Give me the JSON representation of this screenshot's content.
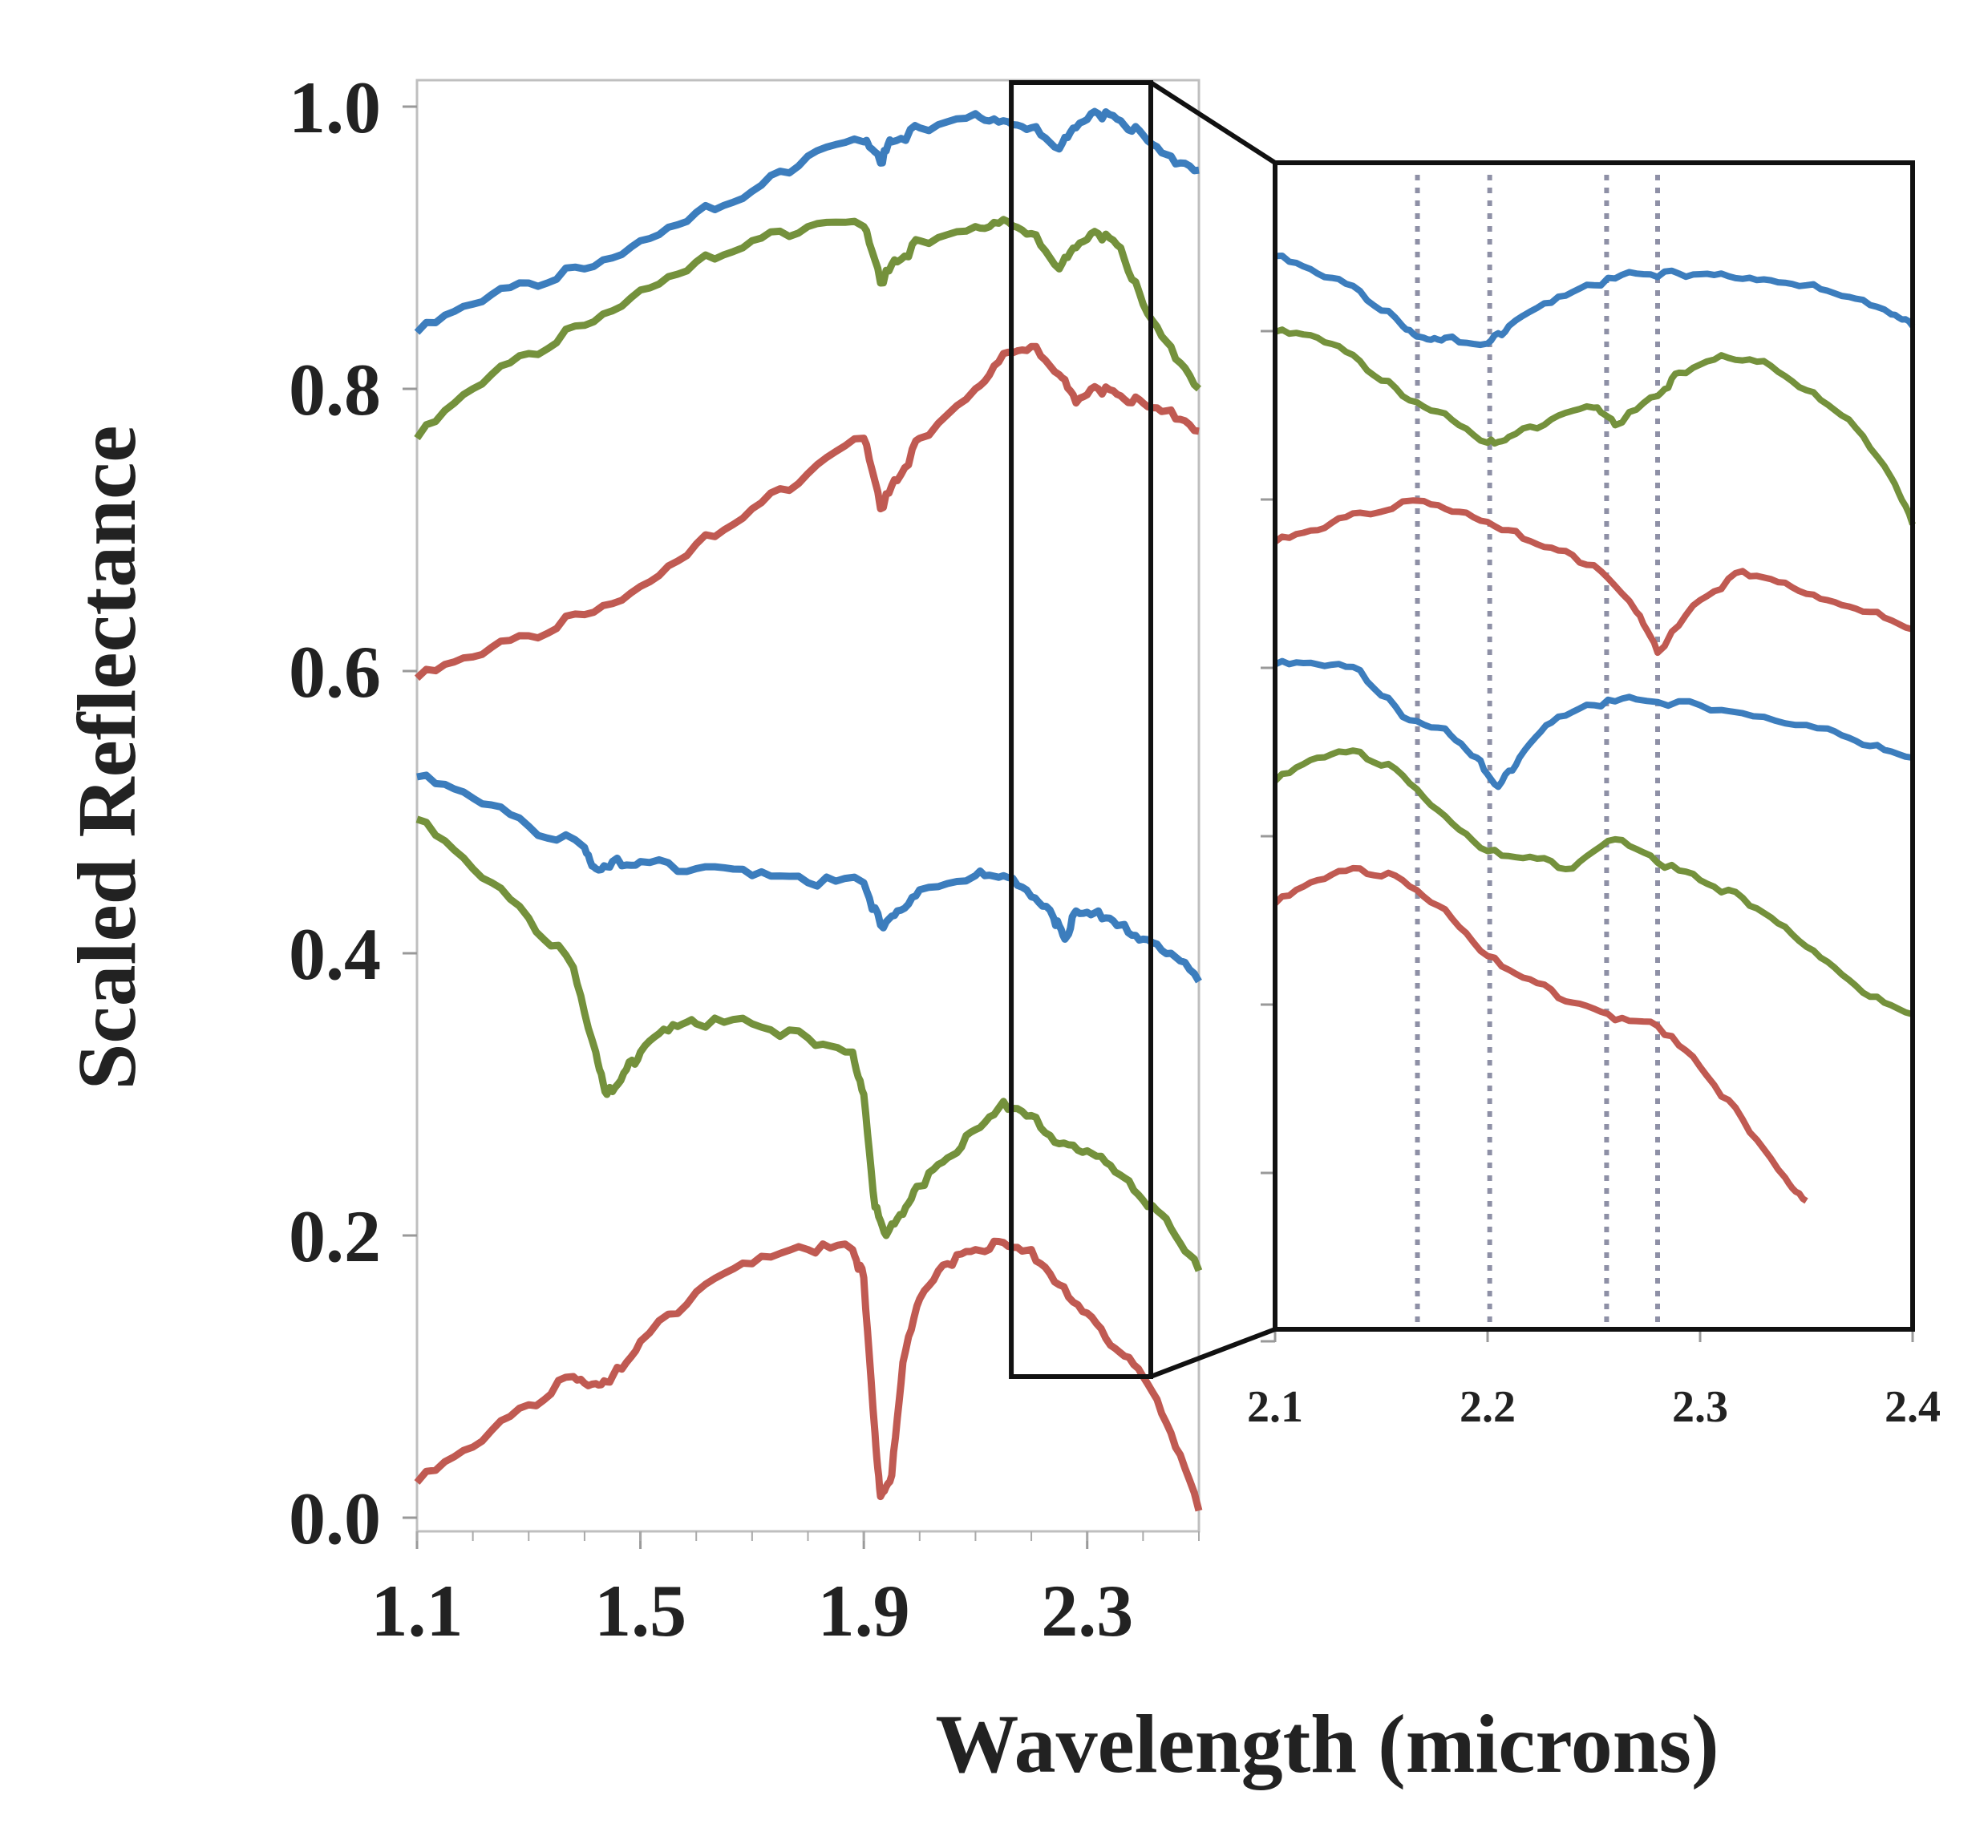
{
  "colors": {
    "blue": "#3c7dbd",
    "green": "#74913c",
    "red": "#c05a52",
    "frame": "#111111",
    "axis": "#bfbfbf",
    "marker": "#8e90a6"
  },
  "chart_data": [
    {
      "type": "line",
      "title": "",
      "xlabel": "Wavelength (microns)",
      "ylabel": "Scaled Reflectance",
      "xlim": [
        1.1,
        2.5
      ],
      "ylim": [
        0.0,
        1.0
      ],
      "x_ticks": [
        1.1,
        1.5,
        1.9,
        2.3
      ],
      "x_tick_labels": [
        "1.1",
        "1.5",
        "1.9",
        "2.3"
      ],
      "y_ticks": [
        0.0,
        0.2,
        0.4,
        0.6,
        0.8,
        1.0
      ],
      "y_tick_labels": [
        "0.0",
        "0.2",
        "0.4",
        "0.6",
        "0.8",
        "1.0"
      ],
      "grid": false,
      "legend": "none",
      "zoom_region": {
        "x": [
          2.2,
          2.5
        ],
        "y": [
          0.1,
          1.0
        ]
      },
      "series": [
        {
          "color": "blue",
          "points": [
            [
              1.1,
              0.84
            ],
            [
              1.2,
              0.86
            ],
            [
              1.3,
              0.875
            ],
            [
              1.4,
              0.885
            ],
            [
              1.5,
              0.905
            ],
            [
              1.6,
              0.925
            ],
            [
              1.7,
              0.94
            ],
            [
              1.8,
              0.965
            ],
            [
              1.9,
              0.975
            ],
            [
              1.93,
              0.96
            ],
            [
              1.95,
              0.975
            ],
            [
              2.0,
              0.985
            ],
            [
              2.1,
              0.995
            ],
            [
              2.15,
              0.99
            ],
            [
              2.2,
              0.985
            ],
            [
              2.25,
              0.97
            ],
            [
              2.28,
              0.985
            ],
            [
              2.32,
              0.995
            ],
            [
              2.36,
              0.99
            ],
            [
              2.4,
              0.98
            ],
            [
              2.45,
              0.965
            ],
            [
              2.5,
              0.955
            ]
          ]
        },
        {
          "color": "green",
          "points": [
            [
              1.1,
              0.765
            ],
            [
              1.2,
              0.8
            ],
            [
              1.3,
              0.825
            ],
            [
              1.4,
              0.845
            ],
            [
              1.5,
              0.87
            ],
            [
              1.6,
              0.89
            ],
            [
              1.7,
              0.905
            ],
            [
              1.8,
              0.915
            ],
            [
              1.9,
              0.915
            ],
            [
              1.93,
              0.875
            ],
            [
              1.96,
              0.89
            ],
            [
              2.0,
              0.905
            ],
            [
              2.1,
              0.915
            ],
            [
              2.15,
              0.92
            ],
            [
              2.2,
              0.91
            ],
            [
              2.25,
              0.885
            ],
            [
              2.28,
              0.9
            ],
            [
              2.32,
              0.91
            ],
            [
              2.36,
              0.9
            ],
            [
              2.4,
              0.86
            ],
            [
              2.45,
              0.83
            ],
            [
              2.5,
              0.8
            ]
          ]
        },
        {
          "color": "red",
          "points": [
            [
              1.1,
              0.595
            ],
            [
              1.2,
              0.61
            ],
            [
              1.3,
              0.625
            ],
            [
              1.4,
              0.64
            ],
            [
              1.5,
              0.66
            ],
            [
              1.6,
              0.69
            ],
            [
              1.7,
              0.715
            ],
            [
              1.8,
              0.74
            ],
            [
              1.9,
              0.765
            ],
            [
              1.93,
              0.715
            ],
            [
              1.96,
              0.735
            ],
            [
              2.0,
              0.765
            ],
            [
              2.1,
              0.8
            ],
            [
              2.15,
              0.825
            ],
            [
              2.2,
              0.83
            ],
            [
              2.25,
              0.81
            ],
            [
              2.28,
              0.79
            ],
            [
              2.32,
              0.8
            ],
            [
              2.36,
              0.795
            ],
            [
              2.4,
              0.79
            ],
            [
              2.45,
              0.785
            ],
            [
              2.5,
              0.77
            ]
          ]
        },
        {
          "color": "blue",
          "points": [
            [
              1.1,
              0.525
            ],
            [
              1.2,
              0.51
            ],
            [
              1.3,
              0.49
            ],
            [
              1.4,
              0.475
            ],
            [
              1.42,
              0.46
            ],
            [
              1.45,
              0.465
            ],
            [
              1.5,
              0.465
            ],
            [
              1.6,
              0.46
            ],
            [
              1.7,
              0.455
            ],
            [
              1.8,
              0.45
            ],
            [
              1.9,
              0.45
            ],
            [
              1.93,
              0.42
            ],
            [
              1.96,
              0.43
            ],
            [
              2.0,
              0.445
            ],
            [
              2.1,
              0.455
            ],
            [
              2.15,
              0.455
            ],
            [
              2.2,
              0.44
            ],
            [
              2.24,
              0.425
            ],
            [
              2.26,
              0.41
            ],
            [
              2.28,
              0.43
            ],
            [
              2.32,
              0.43
            ],
            [
              2.36,
              0.42
            ],
            [
              2.4,
              0.41
            ],
            [
              2.45,
              0.4
            ],
            [
              2.5,
              0.38
            ]
          ]
        },
        {
          "color": "green",
          "points": [
            [
              1.1,
              0.495
            ],
            [
              1.2,
              0.46
            ],
            [
              1.3,
              0.425
            ],
            [
              1.38,
              0.39
            ],
            [
              1.42,
              0.33
            ],
            [
              1.44,
              0.3
            ],
            [
              1.47,
              0.315
            ],
            [
              1.5,
              0.33
            ],
            [
              1.55,
              0.345
            ],
            [
              1.6,
              0.35
            ],
            [
              1.7,
              0.35
            ],
            [
              1.8,
              0.34
            ],
            [
              1.88,
              0.33
            ],
            [
              1.9,
              0.3
            ],
            [
              1.92,
              0.22
            ],
            [
              1.94,
              0.2
            ],
            [
              1.97,
              0.215
            ],
            [
              2.0,
              0.235
            ],
            [
              2.05,
              0.255
            ],
            [
              2.1,
              0.275
            ],
            [
              2.15,
              0.295
            ],
            [
              2.2,
              0.285
            ],
            [
              2.25,
              0.265
            ],
            [
              2.3,
              0.26
            ],
            [
              2.35,
              0.245
            ],
            [
              2.4,
              0.225
            ],
            [
              2.45,
              0.205
            ],
            [
              2.5,
              0.175
            ]
          ]
        },
        {
          "color": "red",
          "points": [
            [
              1.1,
              0.025
            ],
            [
              1.2,
              0.05
            ],
            [
              1.3,
              0.08
            ],
            [
              1.38,
              0.1
            ],
            [
              1.42,
              0.095
            ],
            [
              1.45,
              0.1
            ],
            [
              1.5,
              0.125
            ],
            [
              1.6,
              0.16
            ],
            [
              1.7,
              0.18
            ],
            [
              1.8,
              0.19
            ],
            [
              1.88,
              0.19
            ],
            [
              1.9,
              0.17
            ],
            [
              1.92,
              0.06
            ],
            [
              1.93,
              0.015
            ],
            [
              1.95,
              0.03
            ],
            [
              1.97,
              0.11
            ],
            [
              2.0,
              0.155
            ],
            [
              2.05,
              0.18
            ],
            [
              2.1,
              0.19
            ],
            [
              2.15,
              0.195
            ],
            [
              2.2,
              0.19
            ],
            [
              2.25,
              0.165
            ],
            [
              2.3,
              0.145
            ],
            [
              2.35,
              0.12
            ],
            [
              2.4,
              0.1
            ],
            [
              2.45,
              0.06
            ],
            [
              2.5,
              0.005
            ]
          ]
        }
      ]
    },
    {
      "type": "line",
      "title": "",
      "xlim": [
        2.1,
        2.4
      ],
      "ylim": [
        0.0,
        1.0
      ],
      "x_ticks": [
        2.1,
        2.2,
        2.3,
        2.4
      ],
      "x_tick_labels": [
        "2.1",
        "2.2",
        "2.3",
        "2.4"
      ],
      "y_tick_marks": 7,
      "y_tick_labels": [],
      "grid": false,
      "legend": "none",
      "reference_lines_x": [
        2.167,
        2.201,
        2.256,
        2.28
      ],
      "series": [
        {
          "color": "blue",
          "points": [
            [
              2.1,
              0.92
            ],
            [
              2.12,
              0.905
            ],
            [
              2.14,
              0.89
            ],
            [
              2.16,
              0.86
            ],
            [
              2.17,
              0.85
            ],
            [
              2.18,
              0.85
            ],
            [
              2.2,
              0.845
            ],
            [
              2.21,
              0.86
            ],
            [
              2.23,
              0.88
            ],
            [
              2.25,
              0.895
            ],
            [
              2.27,
              0.905
            ],
            [
              2.29,
              0.905
            ],
            [
              2.31,
              0.905
            ],
            [
              2.33,
              0.9
            ],
            [
              2.35,
              0.895
            ],
            [
              2.37,
              0.885
            ],
            [
              2.39,
              0.87
            ],
            [
              2.4,
              0.86
            ]
          ]
        },
        {
          "color": "green",
          "points": [
            [
              2.1,
              0.855
            ],
            [
              2.12,
              0.85
            ],
            [
              2.14,
              0.83
            ],
            [
              2.16,
              0.8
            ],
            [
              2.18,
              0.785
            ],
            [
              2.2,
              0.76
            ],
            [
              2.21,
              0.765
            ],
            [
              2.23,
              0.78
            ],
            [
              2.25,
              0.79
            ],
            [
              2.26,
              0.775
            ],
            [
              2.28,
              0.8
            ],
            [
              2.29,
              0.82
            ],
            [
              2.31,
              0.835
            ],
            [
              2.33,
              0.83
            ],
            [
              2.35,
              0.805
            ],
            [
              2.37,
              0.78
            ],
            [
              2.39,
              0.73
            ],
            [
              2.4,
              0.69
            ]
          ]
        },
        {
          "color": "red",
          "points": [
            [
              2.1,
              0.675
            ],
            [
              2.12,
              0.685
            ],
            [
              2.14,
              0.7
            ],
            [
              2.17,
              0.71
            ],
            [
              2.19,
              0.7
            ],
            [
              2.21,
              0.685
            ],
            [
              2.23,
              0.67
            ],
            [
              2.25,
              0.655
            ],
            [
              2.27,
              0.615
            ],
            [
              2.28,
              0.58
            ],
            [
              2.3,
              0.625
            ],
            [
              2.32,
              0.65
            ],
            [
              2.34,
              0.64
            ],
            [
              2.36,
              0.625
            ],
            [
              2.38,
              0.615
            ],
            [
              2.4,
              0.6
            ]
          ]
        },
        {
          "color": "blue",
          "points": [
            [
              2.1,
              0.57
            ],
            [
              2.12,
              0.57
            ],
            [
              2.14,
              0.565
            ],
            [
              2.16,
              0.525
            ],
            [
              2.18,
              0.515
            ],
            [
              2.195,
              0.49
            ],
            [
              2.205,
              0.465
            ],
            [
              2.215,
              0.49
            ],
            [
              2.23,
              0.52
            ],
            [
              2.25,
              0.535
            ],
            [
              2.27,
              0.54
            ],
            [
              2.3,
              0.535
            ],
            [
              2.33,
              0.525
            ],
            [
              2.36,
              0.515
            ],
            [
              2.38,
              0.5
            ],
            [
              2.4,
              0.49
            ]
          ]
        },
        {
          "color": "green",
          "points": [
            [
              2.1,
              0.47
            ],
            [
              2.12,
              0.49
            ],
            [
              2.14,
              0.495
            ],
            [
              2.16,
              0.475
            ],
            [
              2.18,
              0.44
            ],
            [
              2.2,
              0.41
            ],
            [
              2.22,
              0.405
            ],
            [
              2.24,
              0.395
            ],
            [
              2.26,
              0.42
            ],
            [
              2.28,
              0.4
            ],
            [
              2.3,
              0.385
            ],
            [
              2.32,
              0.37
            ],
            [
              2.34,
              0.345
            ],
            [
              2.36,
              0.315
            ],
            [
              2.38,
              0.285
            ],
            [
              2.4,
              0.27
            ]
          ]
        },
        {
          "color": "red",
          "points": [
            [
              2.1,
              0.365
            ],
            [
              2.12,
              0.385
            ],
            [
              2.14,
              0.395
            ],
            [
              2.16,
              0.385
            ],
            [
              2.18,
              0.36
            ],
            [
              2.2,
              0.32
            ],
            [
              2.22,
              0.3
            ],
            [
              2.24,
              0.28
            ],
            [
              2.26,
              0.265
            ],
            [
              2.28,
              0.26
            ],
            [
              2.3,
              0.225
            ],
            [
              2.32,
              0.18
            ],
            [
              2.34,
              0.13
            ],
            [
              2.35,
              0.11
            ]
          ]
        }
      ]
    }
  ]
}
